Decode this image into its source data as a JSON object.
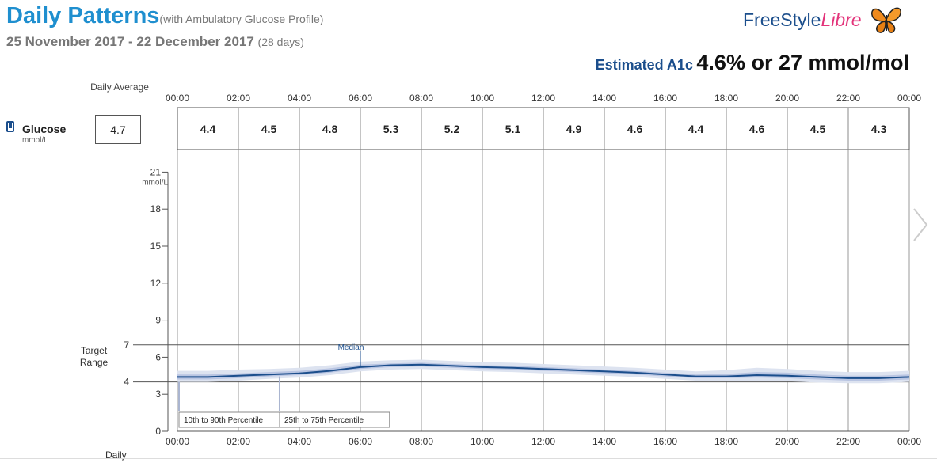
{
  "header": {
    "title": "Daily Patterns",
    "title_note": "(with Ambulatory Glucose Profile)",
    "date_range": "25 November 2017 - 22 December 2017",
    "days": "(28 days)"
  },
  "brand": {
    "name_part1": "FreeStyle",
    "name_part2": "Libre",
    "logo_icon": "butterfly-logo-icon"
  },
  "a1c": {
    "label": "Estimated A1c",
    "value": "4.6% or 27 mmol/mol"
  },
  "summary": {
    "daily_average_header": "Daily Average",
    "row_label": "Glucose",
    "row_unit": "mmol/L",
    "daily_average": "4.7"
  },
  "side_labels": {
    "target_range": "Target Range",
    "daily_footer": "Daily"
  },
  "colors": {
    "title": "#1f8fcf",
    "brand_blue": "#1b4e8c",
    "brand_pink": "#e3337a",
    "median_line": "#1b4e8c",
    "band_10_90": "#dde3f0",
    "band_25_75": "#b9c5e2"
  },
  "chart_data": {
    "type": "line",
    "time_labels": [
      "00:00",
      "02:00",
      "04:00",
      "06:00",
      "08:00",
      "10:00",
      "12:00",
      "14:00",
      "16:00",
      "18:00",
      "20:00",
      "22:00",
      "00:00"
    ],
    "interval_averages": [
      "4.4",
      "4.5",
      "4.8",
      "5.3",
      "5.2",
      "5.1",
      "4.9",
      "4.6",
      "4.4",
      "4.6",
      "4.5",
      "4.3"
    ],
    "ylabel": "mmol/L",
    "y_ticks": [
      0,
      3,
      6,
      9,
      12,
      15,
      18,
      21
    ],
    "ylim": [
      0,
      22.5
    ],
    "xlim_hours": [
      0,
      24
    ],
    "target_range": [
      4,
      7
    ],
    "target_tick_labels": [
      "4",
      "7"
    ],
    "grid": true,
    "series": [
      {
        "name": "Median",
        "x_hours": [
          0,
          1,
          2,
          3,
          4,
          5,
          6,
          7,
          8,
          9,
          10,
          11,
          12,
          13,
          14,
          15,
          16,
          17,
          18,
          19,
          20,
          21,
          22,
          23,
          24
        ],
        "values": [
          4.4,
          4.4,
          4.5,
          4.6,
          4.7,
          4.9,
          5.2,
          5.35,
          5.4,
          5.3,
          5.2,
          5.15,
          5.05,
          4.95,
          4.85,
          4.75,
          4.6,
          4.45,
          4.45,
          4.55,
          4.5,
          4.4,
          4.3,
          4.3,
          4.4
        ]
      },
      {
        "name": "25th to 75th Percentile",
        "lower": [
          4.2,
          4.2,
          4.3,
          4.45,
          4.55,
          4.75,
          5.05,
          5.2,
          5.25,
          5.15,
          5.05,
          5.0,
          4.9,
          4.8,
          4.7,
          4.6,
          4.45,
          4.3,
          4.3,
          4.35,
          4.3,
          4.2,
          4.1,
          4.1,
          4.2
        ],
        "upper": [
          4.6,
          4.6,
          4.7,
          4.8,
          4.9,
          5.1,
          5.4,
          5.5,
          5.55,
          5.45,
          5.35,
          5.3,
          5.2,
          5.1,
          5.0,
          4.9,
          4.75,
          4.6,
          4.65,
          4.8,
          4.75,
          4.6,
          4.5,
          4.5,
          4.6
        ]
      },
      {
        "name": "10th to 90th Percentile",
        "lower": [
          4.0,
          4.0,
          4.1,
          4.25,
          4.35,
          4.55,
          4.85,
          5.0,
          5.05,
          4.95,
          4.85,
          4.8,
          4.7,
          4.6,
          4.5,
          4.4,
          4.25,
          4.1,
          4.1,
          4.1,
          4.05,
          3.95,
          3.9,
          3.9,
          4.0
        ],
        "upper": [
          4.9,
          4.9,
          5.0,
          5.05,
          5.15,
          5.35,
          5.65,
          5.75,
          5.8,
          5.7,
          5.6,
          5.55,
          5.45,
          5.35,
          5.25,
          5.15,
          5.0,
          4.85,
          4.95,
          5.15,
          5.05,
          4.9,
          4.8,
          4.8,
          4.9
        ]
      }
    ]
  }
}
